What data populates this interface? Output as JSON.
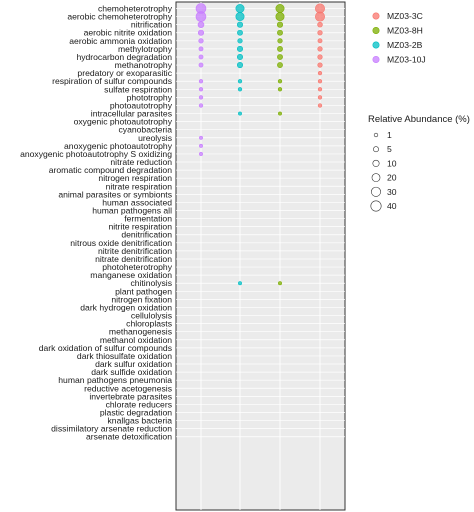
{
  "chart_data": {
    "type": "scatter",
    "title": "",
    "xlabel": "",
    "ylabel": "",
    "grid": true,
    "legend_position": "right",
    "categories": [
      "chemoheterotrophy",
      "aerobic chemoheterotrophy",
      "nitrification",
      "aerobic nitrite oxidation",
      "aerobic ammonia oxidation",
      "methylotrophy",
      "hydrocarbon degradation",
      "methanotrophy",
      "predatory or exoparasitic",
      "respiration of sulfur compounds",
      "sulfate respiration",
      "phototrophy",
      "photoautotrophy",
      "intracellular parasites",
      "oxygenic photoautotrophy",
      "cyanobacteria",
      "ureolysis",
      "anoxygenic photoautotrophy",
      "anoxygenic photoautotrophy S oxidizing",
      "nitrate reduction",
      "aromatic compound degradation",
      "nitrogen respiration",
      "nitrate respiration",
      "animal parasites or symbionts",
      "human associated",
      "human pathogens all",
      "fermentation",
      "nitrite respiration",
      "denitrification",
      "nitrous oxide denitrification",
      "nitrite denitrification",
      "nitrate denitrification",
      "photoheterotrophy",
      "manganese oxidation",
      "chitinolysis",
      "plant pathogen",
      "nitrogen fixation",
      "dark hydrogen oxidation",
      "cellulolysis",
      "chloroplasts",
      "methanogenesis",
      "methanol oxidation",
      "dark oxidation of sulfur compounds",
      "dark thiosulfate oxidation",
      "dark sulfur oxidation",
      "dark sulfide oxidation",
      "human pathogens pneumonia",
      "reductive acetogenesis",
      "invertebrate parasites",
      "chlorate reducers",
      "plastic degradation",
      "knallgas bacteria",
      "dissimilatory arsenate reduction",
      "arsenate detoxification"
    ],
    "series": [
      {
        "name": "MZ03-10J",
        "color": "#C77CFF",
        "points": [
          [
            "chemoheterotrophy",
            36
          ],
          [
            "aerobic chemoheterotrophy",
            36
          ],
          [
            "nitrification",
            8
          ],
          [
            "aerobic nitrite oxidation",
            6
          ],
          [
            "aerobic ammonia oxidation",
            3
          ],
          [
            "methylotrophy",
            2
          ],
          [
            "hydrocarbon degradation",
            2
          ],
          [
            "methanotrophy",
            2
          ],
          [
            "respiration of sulfur compounds",
            1
          ],
          [
            "sulfate respiration",
            1
          ],
          [
            "phototrophy",
            1
          ],
          [
            "photoautotrophy",
            1
          ],
          [
            "ureolysis",
            0.5
          ],
          [
            "anoxygenic photoautotrophy",
            0.5
          ],
          [
            "anoxygenic photoautotrophy S oxidizing",
            0.5
          ]
        ]
      },
      {
        "name": "MZ03-2B",
        "color": "#00BFC4",
        "points": [
          [
            "chemoheterotrophy",
            22
          ],
          [
            "aerobic chemoheterotrophy",
            22
          ],
          [
            "nitrification",
            6
          ],
          [
            "aerobic nitrite oxidation",
            5
          ],
          [
            "aerobic ammonia oxidation",
            3
          ],
          [
            "methylotrophy",
            6
          ],
          [
            "hydrocarbon degradation",
            6
          ],
          [
            "methanotrophy",
            6
          ],
          [
            "respiration of sulfur compounds",
            1
          ],
          [
            "sulfate respiration",
            1
          ],
          [
            "intracellular parasites",
            0.5
          ],
          [
            "chitinolysis",
            0.5
          ]
        ]
      },
      {
        "name": "MZ03-8H",
        "color": "#7CAE00",
        "points": [
          [
            "chemoheterotrophy",
            22
          ],
          [
            "aerobic chemoheterotrophy",
            22
          ],
          [
            "nitrification",
            6
          ],
          [
            "aerobic nitrite oxidation",
            5
          ],
          [
            "aerobic ammonia oxidation",
            3
          ],
          [
            "methylotrophy",
            5
          ],
          [
            "hydrocarbon degradation",
            5
          ],
          [
            "methanotrophy",
            5
          ],
          [
            "respiration of sulfur compounds",
            1
          ],
          [
            "sulfate respiration",
            1
          ],
          [
            "intracellular parasites",
            0.5
          ],
          [
            "chitinolysis",
            0.5
          ]
        ]
      },
      {
        "name": "MZ03-3C",
        "color": "#F8766D",
        "points": [
          [
            "chemoheterotrophy",
            30
          ],
          [
            "aerobic chemoheterotrophy",
            30
          ],
          [
            "nitrification",
            4
          ],
          [
            "aerobic nitrite oxidation",
            3
          ],
          [
            "aerobic ammonia oxidation",
            2
          ],
          [
            "methylotrophy",
            3
          ],
          [
            "hydrocarbon degradation",
            3
          ],
          [
            "methanotrophy",
            3
          ],
          [
            "predatory or exoparasitic",
            1
          ],
          [
            "respiration of sulfur compounds",
            1
          ],
          [
            "sulfate respiration",
            1
          ],
          [
            "phototrophy",
            1
          ],
          [
            "photoautotrophy",
            1
          ]
        ]
      }
    ],
    "legend": {
      "color_entries": [
        {
          "label": "MZ03-3C",
          "color": "#F8766D"
        },
        {
          "label": "MZ03-8H",
          "color": "#7CAE00"
        },
        {
          "label": "MZ03-2B",
          "color": "#00BFC4"
        },
        {
          "label": "MZ03-10J",
          "color": "#C77CFF"
        }
      ],
      "size_title": "Relative Abundance (%)",
      "size_entries": [
        {
          "label": "1",
          "value": 1
        },
        {
          "label": "5",
          "value": 5
        },
        {
          "label": "10",
          "value": 10
        },
        {
          "label": "20",
          "value": 20
        },
        {
          "label": "30",
          "value": 30
        },
        {
          "label": "40",
          "value": 40
        }
      ]
    }
  }
}
